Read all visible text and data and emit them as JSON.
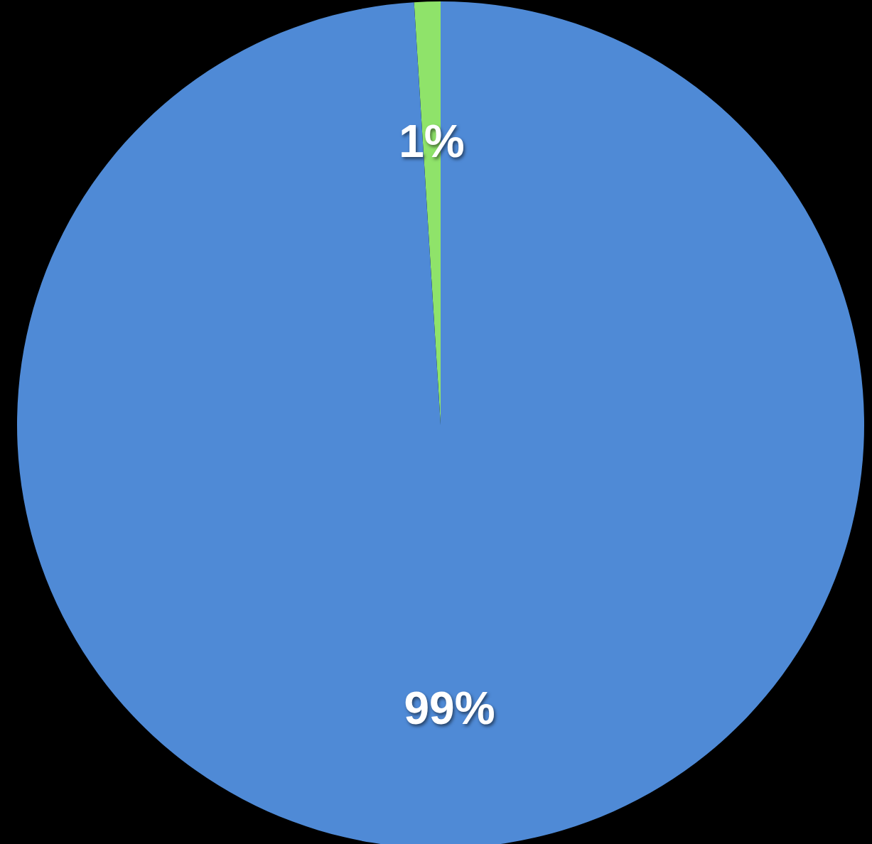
{
  "chart_data": {
    "type": "pie",
    "categories": [
      null,
      null
    ],
    "values": [
      1,
      99
    ],
    "colors": [
      "#8fe36a",
      "#4f8ad6"
    ],
    "value_labels": [
      "1%",
      "99%"
    ]
  }
}
